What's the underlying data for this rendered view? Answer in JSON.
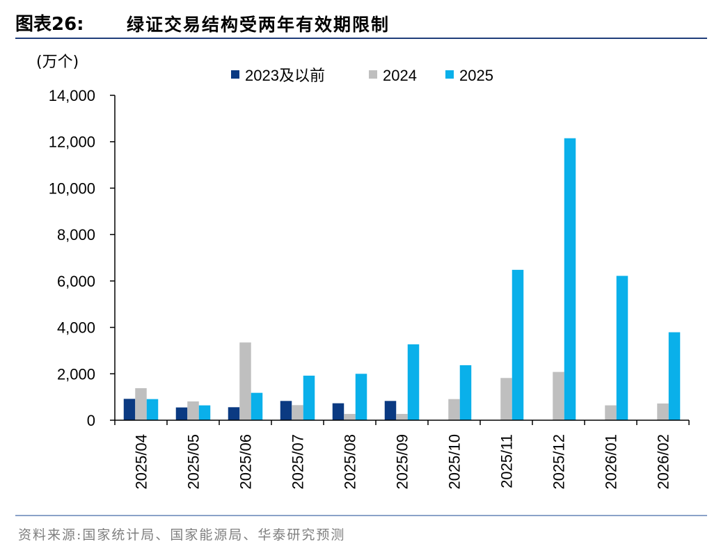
{
  "figure": {
    "label": "图表26:",
    "title": "绿证交易结构受两年有效期限制",
    "source": "资料来源:国家统计局、国家能源局、华泰研究预测"
  },
  "chart_data": {
    "type": "bar",
    "y_unit": "(万个)",
    "categories": [
      "2025/04",
      "2025/05",
      "2025/06",
      "2025/07",
      "2025/08",
      "2025/09",
      "2025/10",
      "2025/11",
      "2025/12",
      "2026/01",
      "2026/02"
    ],
    "series": [
      {
        "name": "2023及以前",
        "color": "#0b3a82",
        "values": [
          920,
          550,
          560,
          830,
          730,
          830,
          0,
          0,
          0,
          0,
          0
        ]
      },
      {
        "name": "2024",
        "color": "#bfbfbf",
        "values": [
          1380,
          810,
          3350,
          650,
          270,
          270,
          910,
          1820,
          2080,
          640,
          720
        ]
      },
      {
        "name": "2025",
        "color": "#0ab0ea",
        "values": [
          910,
          640,
          1180,
          1920,
          2000,
          3270,
          2370,
          6480,
          12150,
          6220,
          3790
        ]
      }
    ],
    "ylim": [
      0,
      14000
    ],
    "yticks": [
      "0",
      "2,000",
      "4,000",
      "6,000",
      "8,000",
      "10,000",
      "12,000",
      "14,000"
    ],
    "ytick_values": [
      0,
      2000,
      4000,
      6000,
      8000,
      10000,
      12000,
      14000
    ],
    "legend_position": "top",
    "grid": false
  }
}
